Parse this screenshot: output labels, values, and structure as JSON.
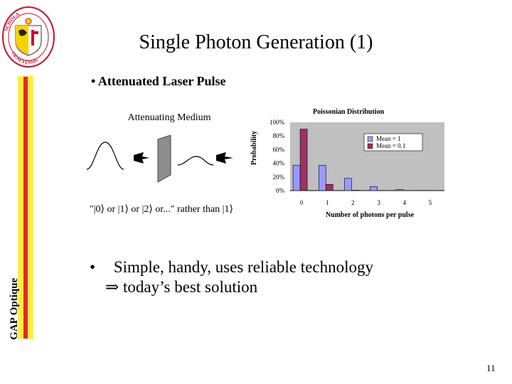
{
  "slide": {
    "title": "Single Photon Generation (1)",
    "bullet1": "Attenuated Laser Pulse",
    "bullet2_line1": "Simple, handy, uses reliable technology",
    "bullet2_line2": "⇒   today’s best solution",
    "bullet_symbol": "•",
    "side_label": "GAP Optique",
    "page_number": "11"
  },
  "diagram": {
    "medium_label": "Attenuating Medium",
    "state_text": "\"|0⟩ or |1⟩ or |2⟩ or...\" rather than |1⟩"
  },
  "logo": {
    "icon": "university-seal",
    "text": "SCHOLA GENEVENSIS"
  },
  "colors": {
    "side_yellow": "#ffef3a",
    "side_red": "#e8262f",
    "series_mean1": "#9999ff",
    "series_mean01": "#993366",
    "plot_background": "#c0c0c0"
  },
  "chart_data": {
    "type": "bar",
    "title": "Poissonian Distribution",
    "xlabel": "Number of photons per pulse",
    "ylabel": "Probability",
    "categories": [
      "0",
      "1",
      "2",
      "3",
      "4",
      "5"
    ],
    "ylim": [
      0,
      100
    ],
    "yticks": [
      "0%",
      "20%",
      "40%",
      "60%",
      "80%",
      "100%"
    ],
    "series": [
      {
        "name": "Mean = 1",
        "values": [
          37,
          37,
          18,
          6,
          1.5,
          0.3
        ]
      },
      {
        "name": "Mean = 0.1",
        "values": [
          90,
          9,
          0.5,
          0,
          0,
          0
        ]
      }
    ],
    "legend": "top-right",
    "grid": false
  }
}
